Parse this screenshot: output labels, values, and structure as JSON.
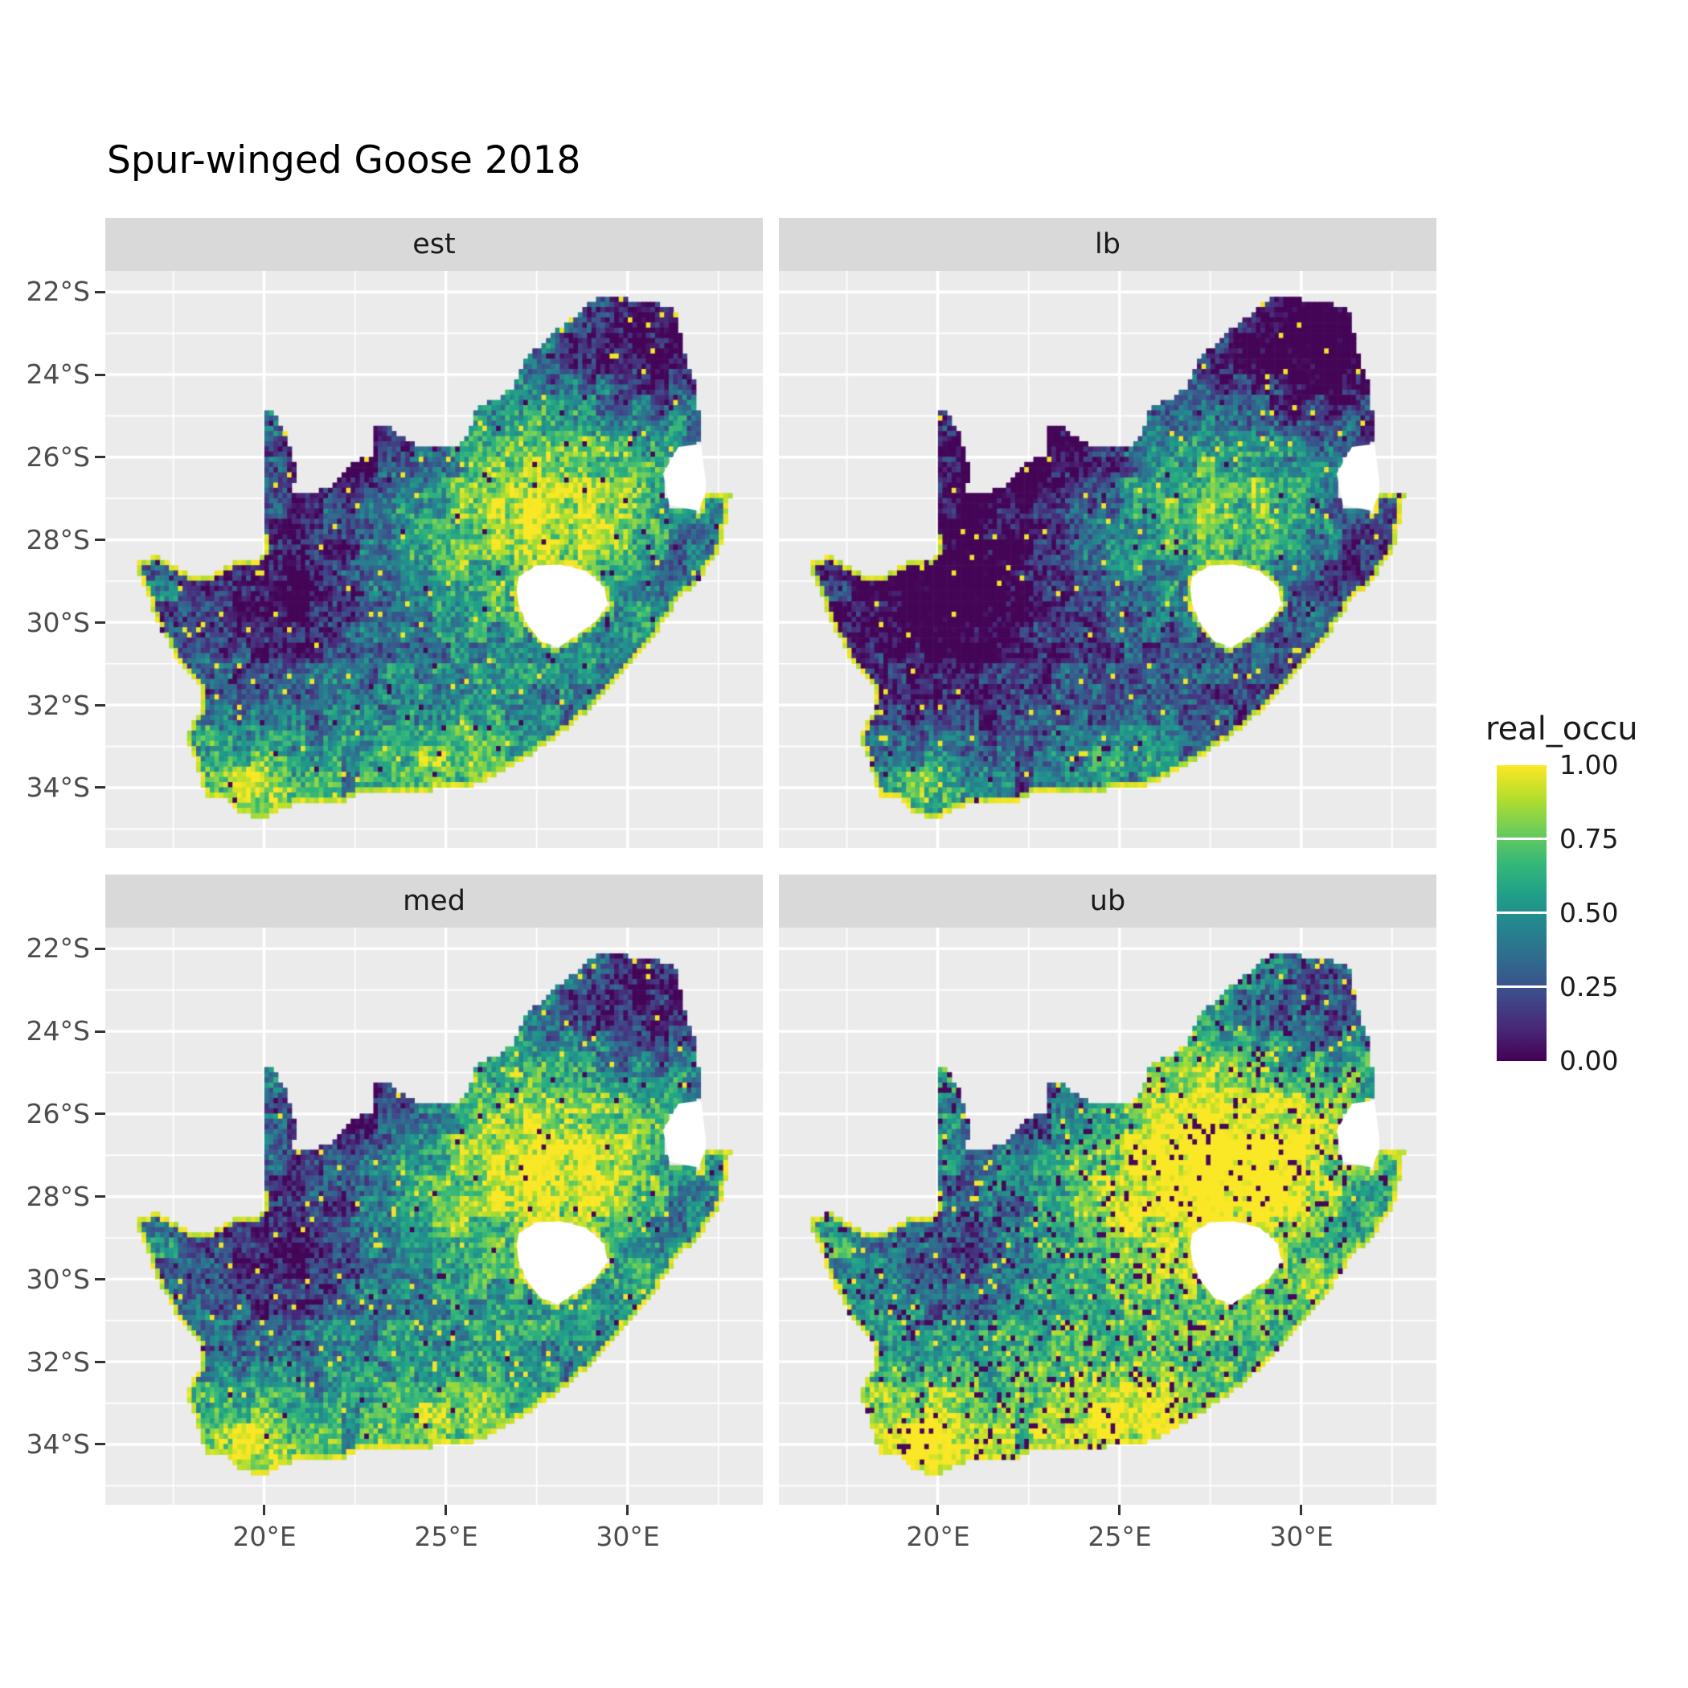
{
  "title": "Spur-winged Goose 2018",
  "facets": [
    {
      "id": "est",
      "label": "est"
    },
    {
      "id": "lb",
      "label": "lb"
    },
    {
      "id": "med",
      "label": "med"
    },
    {
      "id": "ub",
      "label": "ub"
    }
  ],
  "axes": {
    "y_ticks": [
      "22°S",
      "24°S",
      "26°S",
      "28°S",
      "30°S",
      "32°S",
      "34°S"
    ],
    "x_ticks": [
      "20°E",
      "25°E",
      "30°E"
    ]
  },
  "legend": {
    "title": "real_occu",
    "ticks": [
      "1.00",
      "0.75",
      "0.50",
      "0.25",
      "0.00"
    ]
  },
  "colors": {
    "panel_bg": "#EBEBEB",
    "strip_bg": "#D9D9D9",
    "grid": "#FFFFFF",
    "axis_text": "#4D4D4D",
    "text": "#1A1A1A",
    "na_fill": "#FFFFFF",
    "viridis": [
      "#440154",
      "#482878",
      "#3E4A89",
      "#31688E",
      "#26828E",
      "#1F9E89",
      "#35B779",
      "#6DCD59",
      "#B4DE2C",
      "#FDE725"
    ]
  },
  "chart_data": {
    "type": "heatmap",
    "subtype": "faceted_raster_map",
    "title": "Spur-winged Goose 2018",
    "region": "South Africa",
    "facets": [
      "est",
      "lb",
      "med",
      "ub"
    ],
    "fill_variable": "real_occu",
    "fill_range": [
      0.0,
      1.0
    ],
    "legend_breaks": [
      1.0,
      0.75,
      0.5,
      0.25,
      0.0
    ],
    "colormap": "viridis",
    "grid": true,
    "legend_position": "right",
    "x_axis": {
      "label": "",
      "ticks_deg_east": [
        20,
        25,
        30
      ]
    },
    "y_axis": {
      "label": "",
      "ticks_deg_south": [
        22,
        24,
        26,
        28,
        30,
        32,
        34
      ]
    },
    "lon_range": [
      15.63,
      33.72
    ],
    "lat_range": [
      -35.46,
      -21.49
    ],
    "high_occupancy_regions": [
      "central Highveld (25-30E, 26-30S)",
      "southwest Cape",
      "coastal fringe ring"
    ],
    "low_occupancy_regions": [
      "northwest Kalahari and Bushmanland",
      "far northern Limpopo lowveld"
    ],
    "facet_brightness_order": "lb < est < med < ub",
    "outline_lonlat": [
      [
        16.45,
        -28.58
      ],
      [
        17.05,
        -28.35
      ],
      [
        17.45,
        -28.6
      ],
      [
        17.95,
        -28.85
      ],
      [
        18.6,
        -28.85
      ],
      [
        19.2,
        -28.5
      ],
      [
        19.7,
        -28.45
      ],
      [
        19.98,
        -28.42
      ],
      [
        19.98,
        -24.75
      ],
      [
        20.3,
        -25.0
      ],
      [
        20.6,
        -25.45
      ],
      [
        20.8,
        -25.95
      ],
      [
        20.85,
        -26.5
      ],
      [
        20.7,
        -26.85
      ],
      [
        21.3,
        -26.85
      ],
      [
        21.8,
        -26.75
      ],
      [
        22.3,
        -26.25
      ],
      [
        22.7,
        -26.0
      ],
      [
        22.95,
        -25.95
      ],
      [
        23.05,
        -25.3
      ],
      [
        23.45,
        -25.3
      ],
      [
        24.0,
        -25.65
      ],
      [
        24.7,
        -25.8
      ],
      [
        25.3,
        -25.72
      ],
      [
        25.6,
        -25.45
      ],
      [
        25.85,
        -24.75
      ],
      [
        26.4,
        -24.62
      ],
      [
        26.85,
        -24.28
      ],
      [
        27.15,
        -23.65
      ],
      [
        27.7,
        -23.2
      ],
      [
        28.3,
        -22.75
      ],
      [
        29.05,
        -22.2
      ],
      [
        29.45,
        -22.1
      ],
      [
        30.1,
        -22.2
      ],
      [
        30.8,
        -22.3
      ],
      [
        31.3,
        -22.35
      ],
      [
        31.55,
        -23.5
      ],
      [
        31.87,
        -24.3
      ],
      [
        31.98,
        -25.15
      ],
      [
        32.02,
        -25.65
      ],
      [
        31.4,
        -25.75
      ],
      [
        30.95,
        -26.35
      ],
      [
        31.1,
        -27.2
      ],
      [
        31.95,
        -27.32
      ],
      [
        32.15,
        -26.85
      ],
      [
        32.85,
        -26.85
      ],
      [
        32.55,
        -28.2
      ],
      [
        32.05,
        -28.85
      ],
      [
        31.3,
        -29.55
      ],
      [
        30.65,
        -30.45
      ],
      [
        30.0,
        -31.05
      ],
      [
        29.25,
        -31.85
      ],
      [
        28.3,
        -32.6
      ],
      [
        27.3,
        -33.2
      ],
      [
        26.3,
        -33.7
      ],
      [
        25.65,
        -34.0
      ],
      [
        25.0,
        -33.98
      ],
      [
        24.2,
        -34.15
      ],
      [
        23.4,
        -34.1
      ],
      [
        22.7,
        -34.05
      ],
      [
        22.1,
        -34.35
      ],
      [
        21.2,
        -34.4
      ],
      [
        20.5,
        -34.45
      ],
      [
        20.0,
        -34.8
      ],
      [
        19.35,
        -34.6
      ],
      [
        18.85,
        -34.2
      ],
      [
        18.45,
        -34.3
      ],
      [
        18.3,
        -33.9
      ],
      [
        18.1,
        -33.3
      ],
      [
        17.85,
        -32.75
      ],
      [
        18.3,
        -32.0
      ],
      [
        18.2,
        -31.5
      ],
      [
        17.6,
        -30.9
      ],
      [
        17.1,
        -30.05
      ],
      [
        16.8,
        -29.35
      ]
    ],
    "lesotho_hole_lonlat": [
      [
        27.0,
        -28.9
      ],
      [
        27.5,
        -28.62
      ],
      [
        28.15,
        -28.6
      ],
      [
        28.85,
        -28.75
      ],
      [
        29.35,
        -29.15
      ],
      [
        29.45,
        -29.55
      ],
      [
        29.15,
        -29.95
      ],
      [
        28.6,
        -30.3
      ],
      [
        28.1,
        -30.6
      ],
      [
        27.6,
        -30.45
      ],
      [
        27.25,
        -30.05
      ],
      [
        27.0,
        -29.55
      ],
      [
        26.95,
        -29.2
      ]
    ],
    "eswatini_notch_lonlat": [
      [
        31.4,
        -25.75
      ],
      [
        32.02,
        -25.68
      ],
      [
        32.15,
        -26.6
      ],
      [
        32.15,
        -26.85
      ],
      [
        31.95,
        -27.3
      ],
      [
        31.15,
        -27.15
      ],
      [
        30.98,
        -26.4
      ]
    ],
    "render_hints": {
      "cell_deg": 0.125,
      "facet_offsets": {
        "est": 0.0,
        "lb": -0.21,
        "med": 0.06,
        "ub": 0.24
      },
      "facet_salt": {
        "est": 0.03,
        "lb": 0.03,
        "med": 0.03,
        "ub": 0.1
      },
      "facet_dark_bias": {
        "est": 0.45,
        "lb": 0.5,
        "med": 0.4,
        "ub": 0.8
      }
    }
  }
}
